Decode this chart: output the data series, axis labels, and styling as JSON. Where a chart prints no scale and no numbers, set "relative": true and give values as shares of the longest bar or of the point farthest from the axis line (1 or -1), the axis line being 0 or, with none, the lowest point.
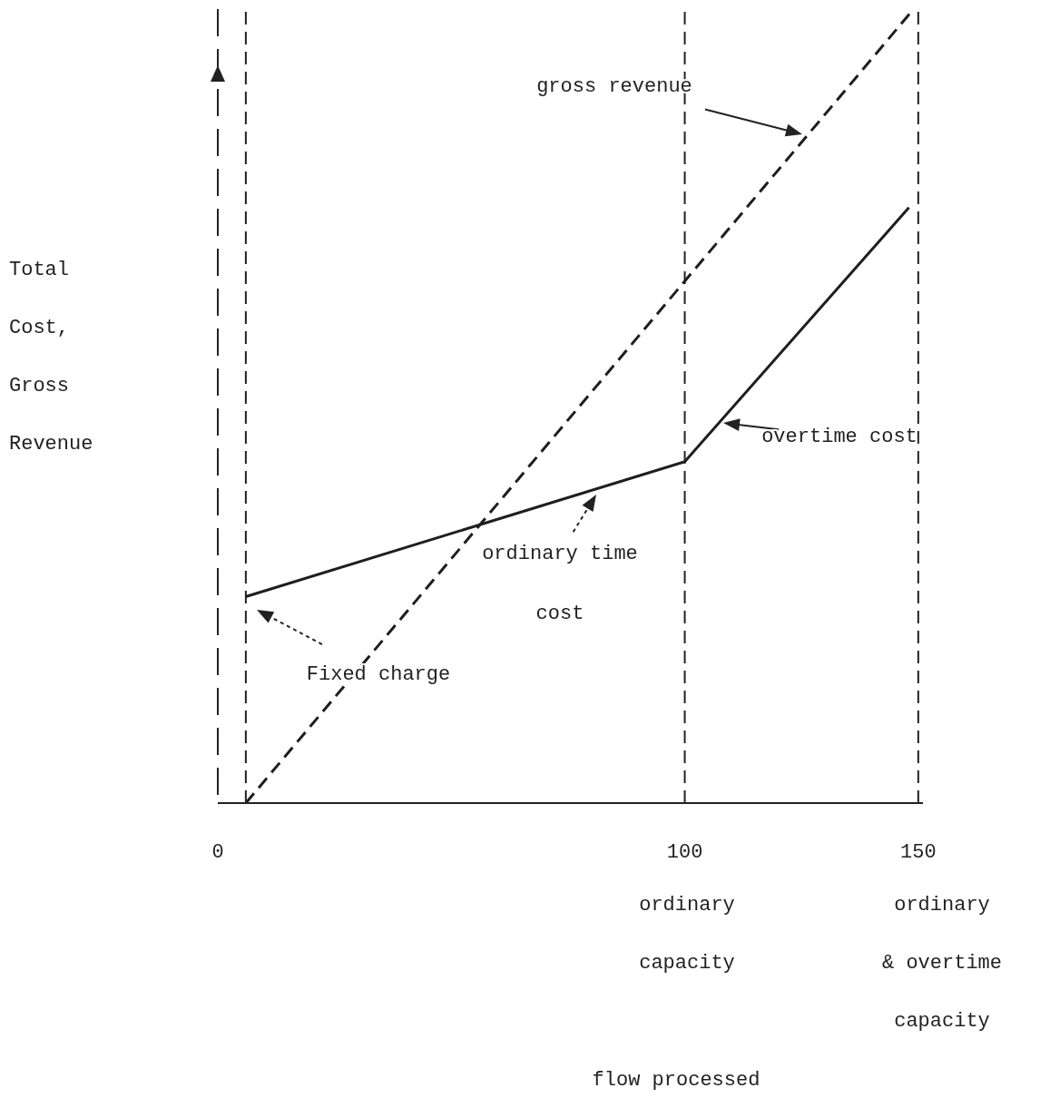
{
  "chart_data": {
    "type": "line",
    "relative": true,
    "ylabel": "Total Cost, Gross Revenue",
    "xlim": [
      0,
      151
    ],
    "xticks": [
      0,
      100,
      150
    ],
    "series": [
      {
        "color": "#1e1e1e",
        "line_style": "solid",
        "x": [
          6,
          100,
          148
        ],
        "values": [
          0.26,
          0.43,
          0.75
        ]
      },
      {
        "color": "#1e1e1e",
        "line_style": "dashed",
        "x": [
          6,
          149
        ],
        "values": [
          0,
          1
        ]
      }
    ],
    "ref_lines": [
      {
        "axis": "x",
        "value": 6,
        "line_style": "dashed"
      },
      {
        "axis": "x",
        "value": 100,
        "line_style": "dashed"
      },
      {
        "axis": "x",
        "value": 150,
        "line_style": "dashed"
      }
    ],
    "annotations": [
      "gross revenue",
      "overtime cost",
      "ordinary time\ncost",
      "Fixed charge",
      "ordinary\ncapacity",
      "ordinary\n& overtime\ncapacity",
      "flow processed"
    ]
  }
}
